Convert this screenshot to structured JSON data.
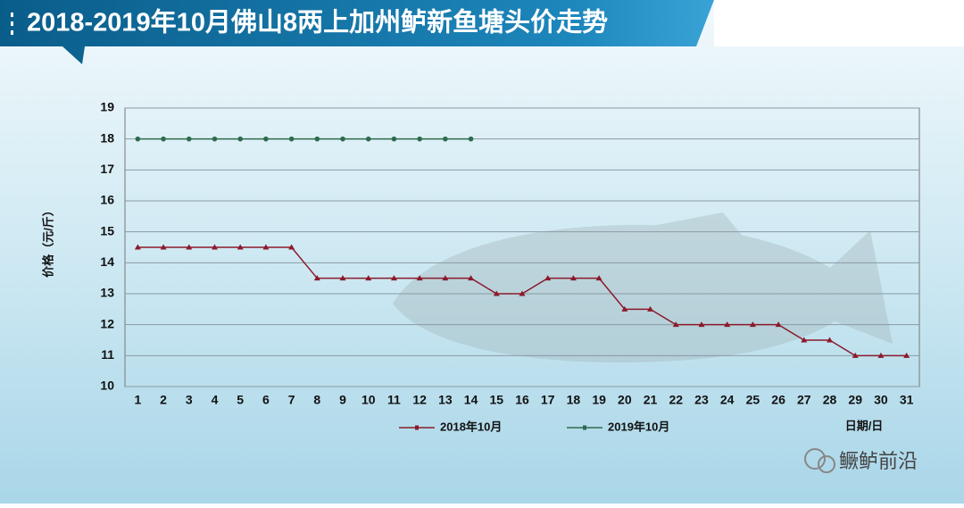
{
  "chart_data": {
    "type": "line",
    "title": "2018-2019年10月佛山8两上加州鲈新鱼塘头价走势",
    "y_label": "价格（元/斤）",
    "x_label": "日期/日",
    "watermark": "鳜鲈前沿",
    "categories": [
      1,
      2,
      3,
      4,
      5,
      6,
      7,
      8,
      9,
      10,
      11,
      12,
      13,
      14,
      15,
      16,
      17,
      18,
      19,
      20,
      21,
      22,
      23,
      24,
      25,
      26,
      27,
      28,
      29,
      30,
      31
    ],
    "series": [
      {
        "name": "2018年10月",
        "color": "#8b1a2b",
        "marker": "triangle",
        "values": [
          14.5,
          14.5,
          14.5,
          14.5,
          14.5,
          14.5,
          14.5,
          13.5,
          13.5,
          13.5,
          13.5,
          13.5,
          13.5,
          13.5,
          13,
          13,
          13.5,
          13.5,
          13.5,
          12.5,
          12.5,
          12,
          12,
          12,
          12,
          12,
          11.5,
          11.5,
          11,
          11,
          11
        ]
      },
      {
        "name": "2019年10月",
        "color": "#2e6b4f",
        "marker": "circle",
        "values": [
          18,
          18,
          18,
          18,
          18,
          18,
          18,
          18,
          18,
          18,
          18,
          18,
          18,
          18,
          null,
          null,
          null,
          null,
          null,
          null,
          null,
          null,
          null,
          null,
          null,
          null,
          null,
          null,
          null,
          null,
          null
        ]
      }
    ],
    "ylim": [
      10,
      19
    ],
    "yticks": [
      10,
      11,
      12,
      13,
      14,
      15,
      16,
      17,
      18,
      19
    ],
    "grid": true
  }
}
